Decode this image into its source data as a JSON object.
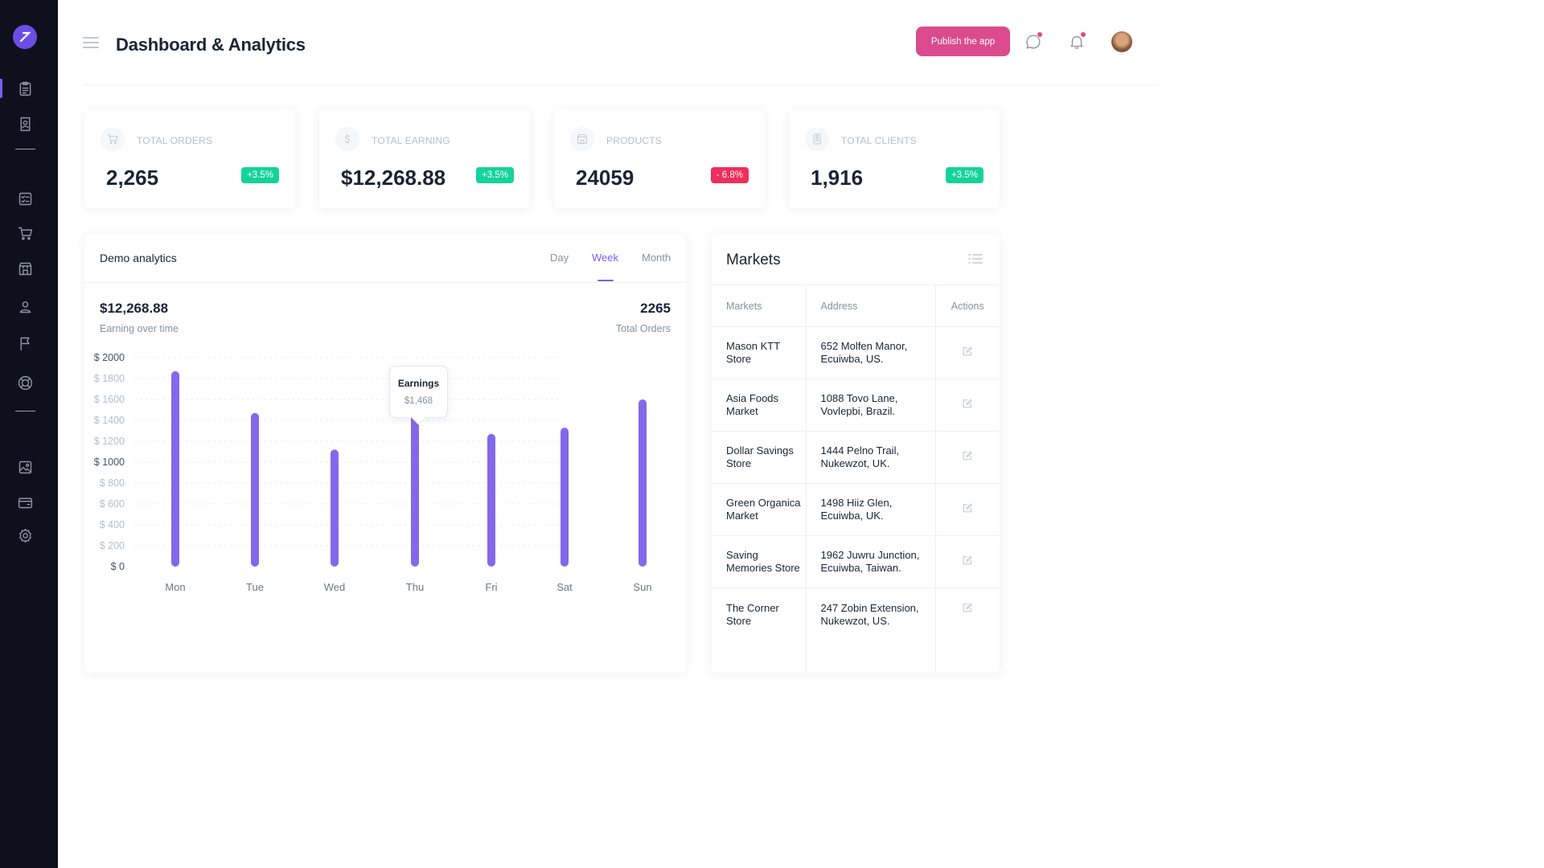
{
  "header": {
    "title": "Dashboard & Analytics",
    "publish_label": "Publish the app",
    "colors": {
      "accent": "#7C5CF5",
      "publish": "#DB4B8E",
      "sidebar": "#0E111D"
    }
  },
  "sidebar": {
    "logo_icon": "x-logo-icon",
    "items": [
      {
        "icon": "clipboard-icon",
        "active": true
      },
      {
        "icon": "document-person-icon"
      },
      {
        "icon": "checklist-icon"
      },
      {
        "icon": "cart-icon"
      },
      {
        "icon": "store-icon"
      },
      {
        "icon": "users-icon"
      },
      {
        "icon": "flag-icon"
      },
      {
        "icon": "life-buoy-icon"
      },
      {
        "icon": "image-icon"
      },
      {
        "icon": "wallet-icon"
      },
      {
        "icon": "settings-icon"
      }
    ]
  },
  "stats": [
    {
      "label": "TOTAL ORDERS",
      "value": "2,265",
      "change": "+3.5%",
      "trend": "up",
      "icon": "cart-icon"
    },
    {
      "label": "TOTAL EARNING",
      "value": "$12,268.88",
      "change": "+3.5%",
      "trend": "up",
      "icon": "dollar-icon"
    },
    {
      "label": "PRODUCTS",
      "value": "24059",
      "change": "- 6.8%",
      "trend": "down",
      "icon": "store-icon"
    },
    {
      "label": "TOTAL CLIENTS",
      "value": "1,916",
      "change": "+3.5%",
      "trend": "up",
      "icon": "id-badge-icon"
    }
  ],
  "analytics": {
    "title": "Demo analytics",
    "tabs": [
      "Day",
      "Week",
      "Month"
    ],
    "active_tab": "Week",
    "earnings_value": "$12,268.88",
    "earnings_label": "Earning over time",
    "orders_value": "2265",
    "orders_label": "Total Orders",
    "tooltip": {
      "title": "Earnings",
      "value": "$1,468"
    }
  },
  "chart_data": {
    "type": "bar",
    "categories": [
      "Mon",
      "Tue",
      "Wed",
      "Thu",
      "Fri",
      "Sat",
      "Sun"
    ],
    "values": [
      1870,
      1470,
      1120,
      1468,
      1270,
      1330,
      1600
    ],
    "ylim": [
      0,
      2000
    ],
    "yticks": [
      0,
      200,
      400,
      600,
      800,
      1000,
      1200,
      1400,
      1600,
      1800,
      2000
    ],
    "ytick_labels": [
      "$ 0",
      "$ 200",
      "$ 400",
      "$ 600",
      "$ 800",
      "$ 1000",
      "$ 1200",
      "$ 1400",
      "$ 1600",
      "$ 1800",
      "$ 2000"
    ],
    "grid": true,
    "bar_color": "#8468EC",
    "highlight_category": "Thu"
  },
  "markets": {
    "title": "Markets",
    "columns": [
      "Markets",
      "Address",
      "Actions"
    ],
    "rows": [
      {
        "name": "Mason KTT Store",
        "address": "652 Molfen Manor, Ecuiwba, US."
      },
      {
        "name": "Asia Foods Market",
        "address": "1088 Tovo Lane, Vovlepbi, Brazil."
      },
      {
        "name": "Dollar Savings Store",
        "address": "1444 Pelno Trail, Nukewzot, UK."
      },
      {
        "name": "Green Organica Market",
        "address": "1498 Hiiz Glen, Ecuiwba, UK."
      },
      {
        "name": "Saving Memories Store",
        "address": "1962 Juwru Junction, Ecuiwba, Taiwan."
      },
      {
        "name": "The Corner Store",
        "address": "247 Zobin Extension, Nukewzot, US."
      }
    ],
    "action_icon": "edit-icon"
  }
}
